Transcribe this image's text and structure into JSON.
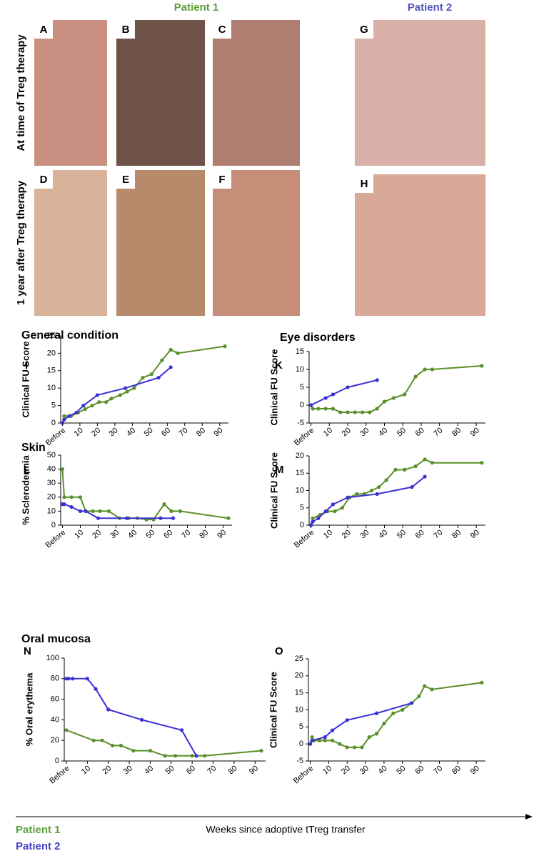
{
  "header": {
    "patient1": "Patient 1",
    "patient2": "Patient 2"
  },
  "rows": [
    "At time of Treg therapy",
    "1 year after Treg therapy"
  ],
  "panels": [
    "A",
    "B",
    "C",
    "G",
    "D",
    "E",
    "F",
    "H"
  ],
  "chart_data": [
    {
      "type": "line",
      "label": "I",
      "title": "General condition",
      "ylabel": "Clinical FU Score",
      "xlim": [
        -1,
        95
      ],
      "xticks": [
        {
          "value": 0,
          "label": "Before"
        },
        10,
        20,
        30,
        40,
        50,
        60,
        70,
        80,
        90
      ],
      "ylim": [
        0,
        25
      ],
      "yticks": [
        0,
        5,
        10,
        15,
        20,
        25
      ],
      "series": [
        {
          "name": "Patient 1",
          "color": "#5a8f29",
          "x": [
            0,
            1,
            5,
            9,
            13,
            17,
            21,
            25,
            28,
            33,
            37,
            41,
            46,
            51,
            57,
            62,
            66,
            93
          ],
          "values": [
            0,
            2,
            2,
            3,
            4,
            5,
            6,
            6,
            7,
            8,
            9,
            10,
            13,
            14,
            18,
            21,
            20,
            22
          ]
        },
        {
          "name": "Patient 2",
          "color": "#3b30d6",
          "x": [
            0,
            1,
            4,
            8,
            12,
            20,
            36,
            55,
            62
          ],
          "values": [
            0,
            1,
            2,
            3,
            5,
            8,
            10,
            13,
            16
          ]
        }
      ]
    },
    {
      "type": "line",
      "label": "K",
      "title": "Eye disorders",
      "ylabel": "Clinical FU Score",
      "xlim": [
        -1,
        95
      ],
      "xticks": [
        {
          "value": 0,
          "label": "Before"
        },
        10,
        20,
        30,
        40,
        50,
        60,
        70,
        80,
        90
      ],
      "ylim": [
        -5,
        15
      ],
      "yticks": [
        -5,
        0,
        5,
        10,
        15
      ],
      "series": [
        {
          "name": "Patient 1",
          "color": "#5a8f29",
          "x": [
            0,
            1,
            4,
            8,
            12,
            16,
            20,
            24,
            28,
            32,
            36,
            40,
            45,
            51,
            57,
            62,
            66,
            93
          ],
          "values": [
            0,
            -1,
            -1,
            -1,
            -1,
            -2,
            -2,
            -2,
            -2,
            -2,
            -1,
            1,
            2,
            3,
            8,
            10,
            10,
            11
          ]
        },
        {
          "name": "Patient 2",
          "color": "#3b30d6",
          "x": [
            0,
            8,
            12,
            20,
            36
          ],
          "values": [
            0,
            2,
            3,
            5,
            7
          ]
        }
      ]
    },
    {
      "type": "line",
      "label": "L",
      "title": "Skin",
      "ylabel": "% Sclerodermia",
      "xlim": [
        -1,
        95
      ],
      "xticks": [
        {
          "value": 0,
          "label": "Before"
        },
        10,
        20,
        30,
        40,
        50,
        60,
        70,
        80,
        90
      ],
      "ylim": [
        0,
        50
      ],
      "yticks": [
        0,
        10,
        20,
        30,
        40,
        50
      ],
      "series": [
        {
          "name": "Patient 1",
          "color": "#5a8f29",
          "x": [
            0,
            1,
            5,
            10,
            13,
            17,
            21,
            26,
            32,
            37,
            42,
            47,
            51,
            57,
            61,
            66,
            93
          ],
          "values": [
            40,
            20,
            20,
            20,
            10,
            10,
            10,
            10,
            5,
            5,
            5,
            4,
            4,
            15,
            10,
            10,
            5
          ]
        },
        {
          "name": "Patient 2",
          "color": "#3b30d6",
          "x": [
            0,
            1,
            5,
            10,
            13,
            20,
            36,
            55,
            62
          ],
          "values": [
            15,
            15,
            13,
            10,
            10,
            5,
            5,
            5,
            5
          ]
        }
      ]
    },
    {
      "type": "line",
      "label": "M",
      "ylabel": "Clinical FU Score",
      "xlim": [
        -1,
        95
      ],
      "xticks": [
        {
          "value": 0,
          "label": "Before"
        },
        10,
        20,
        30,
        40,
        50,
        60,
        70,
        80,
        90
      ],
      "ylim": [
        0,
        20
      ],
      "yticks": [
        0,
        5,
        10,
        15,
        20
      ],
      "series": [
        {
          "name": "Patient 1",
          "color": "#5a8f29",
          "x": [
            0,
            1,
            5,
            9,
            13,
            17,
            21,
            25,
            29,
            33,
            37,
            41,
            46,
            51,
            57,
            62,
            66,
            93
          ],
          "values": [
            0,
            2,
            3,
            4,
            4,
            5,
            8,
            9,
            9,
            10,
            11,
            13,
            16,
            16,
            17,
            19,
            18,
            18
          ]
        },
        {
          "name": "Patient 2",
          "color": "#3b30d6",
          "x": [
            0,
            1,
            4,
            8,
            12,
            20,
            36,
            55,
            62
          ],
          "values": [
            0,
            1,
            2,
            4,
            6,
            8,
            9,
            11,
            14
          ]
        }
      ]
    },
    {
      "type": "line",
      "label": "N",
      "title": "Oral mucosa",
      "ylabel": "% Oral erythema",
      "xlim": [
        -1,
        95
      ],
      "xticks": [
        {
          "value": 0,
          "label": "Before"
        },
        10,
        20,
        30,
        40,
        50,
        60,
        70,
        80,
        90
      ],
      "ylim": [
        0,
        100
      ],
      "yticks": [
        0,
        20,
        40,
        60,
        80,
        100
      ],
      "series": [
        {
          "name": "Patient 1",
          "color": "#5a8f29",
          "x": [
            0,
            13,
            17,
            22,
            26,
            32,
            40,
            47,
            52,
            60,
            66,
            93
          ],
          "values": [
            30,
            20,
            20,
            15,
            15,
            10,
            10,
            5,
            5,
            5,
            5,
            10
          ]
        },
        {
          "name": "Patient 2",
          "color": "#3b30d6",
          "x": [
            0,
            1,
            3,
            10,
            14,
            20,
            36,
            55,
            62
          ],
          "values": [
            80,
            80,
            80,
            80,
            70,
            50,
            40,
            30,
            5
          ]
        }
      ]
    },
    {
      "type": "line",
      "label": "O",
      "ylabel": "Clinical FU Score",
      "xlim": [
        -1,
        95
      ],
      "xticks": [
        {
          "value": 0,
          "label": "Before"
        },
        10,
        20,
        30,
        40,
        50,
        60,
        70,
        80,
        90
      ],
      "ylim": [
        -5,
        25
      ],
      "yticks": [
        -5,
        0,
        5,
        10,
        15,
        20,
        25
      ],
      "series": [
        {
          "name": "Patient 1",
          "color": "#5a8f29",
          "x": [
            0,
            1,
            2,
            5,
            8,
            12,
            16,
            20,
            24,
            28,
            32,
            36,
            40,
            45,
            50,
            55,
            59,
            62,
            66,
            93
          ],
          "values": [
            0,
            2,
            1,
            1,
            1,
            1,
            0,
            -1,
            -1,
            -1,
            2,
            3,
            6,
            9,
            10,
            12,
            14,
            17,
            16,
            18
          ]
        },
        {
          "name": "Patient 2",
          "color": "#3b30d6",
          "x": [
            0,
            1,
            8,
            12,
            20,
            36,
            55
          ],
          "values": [
            0,
            1,
            2,
            4,
            7,
            9,
            12
          ]
        }
      ]
    }
  ],
  "footer": {
    "xlabel": "Weeks since adoptive tTreg transfer"
  }
}
